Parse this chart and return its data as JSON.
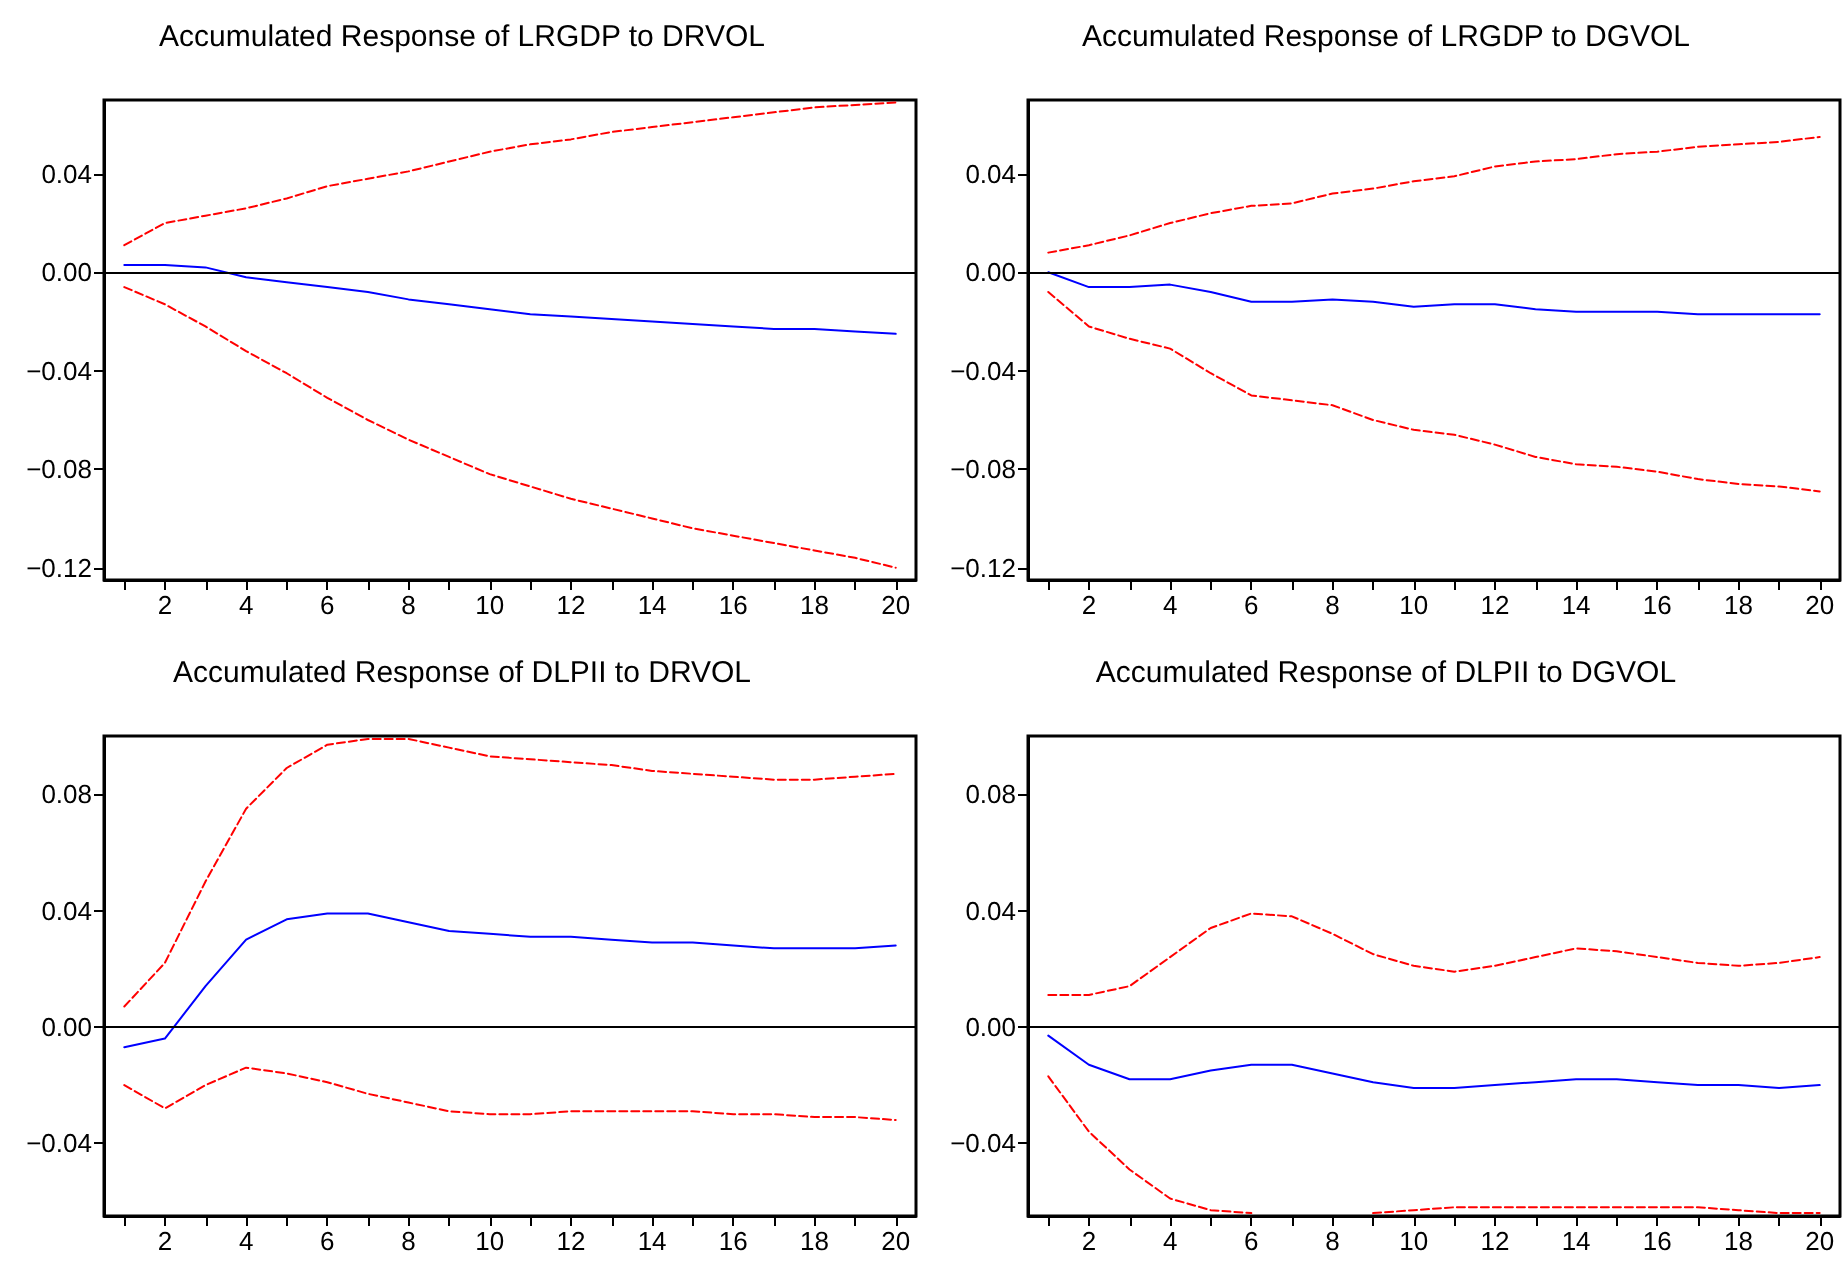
{
  "chart_data": [
    {
      "type": "line",
      "title": "Accumulated Response of LRGDP to DRVOL",
      "x": [
        1,
        2,
        3,
        4,
        5,
        6,
        7,
        8,
        9,
        10,
        11,
        12,
        13,
        14,
        15,
        16,
        17,
        18,
        19,
        20
      ],
      "xlim": [
        0.5,
        20.5
      ],
      "xticks": [
        {
          "value": 1,
          "label": null
        },
        2,
        {
          "value": 3,
          "label": null
        },
        4,
        {
          "value": 5,
          "label": null
        },
        6,
        {
          "value": 7,
          "label": null
        },
        8,
        {
          "value": 9,
          "label": null
        },
        10,
        {
          "value": 11,
          "label": null
        },
        12,
        {
          "value": 13,
          "label": null
        },
        14,
        {
          "value": 15,
          "label": null
        },
        16,
        {
          "value": 17,
          "label": null
        },
        18,
        {
          "value": 19,
          "label": null
        },
        20
      ],
      "ylim": [
        -0.125,
        0.07
      ],
      "yticks": [
        {
          "value": -0.12,
          "label": "−0.12"
        },
        {
          "value": -0.08,
          "label": "−0.08"
        },
        {
          "value": -0.04,
          "label": "−0.04"
        },
        {
          "value": 0,
          "label": "0.00"
        },
        {
          "value": 0.04,
          "label": "0.04"
        }
      ],
      "grid": false,
      "marker": "none",
      "ref_lines": [
        {
          "axis": "y",
          "value": 0,
          "color": "#000000"
        }
      ],
      "series": [
        {
          "color": "#0000ff",
          "line_style": "solid",
          "values": [
            0.003,
            0.003,
            0.002,
            -0.002,
            -0.004,
            -0.006,
            -0.008,
            -0.011,
            -0.013,
            -0.015,
            -0.017,
            -0.018,
            -0.019,
            -0.02,
            -0.021,
            -0.022,
            -0.023,
            -0.023,
            -0.024,
            -0.025
          ]
        },
        {
          "color": "#ff0000",
          "line_style": "dashed",
          "values": [
            0.011,
            0.02,
            0.023,
            0.026,
            0.03,
            0.035,
            0.038,
            0.041,
            0.045,
            0.049,
            0.052,
            0.054,
            0.057,
            0.059,
            0.061,
            0.063,
            0.065,
            0.067,
            0.068,
            0.069
          ]
        },
        {
          "color": "#ff0000",
          "line_style": "dashed",
          "values": [
            -0.006,
            -0.013,
            -0.022,
            -0.032,
            -0.041,
            -0.051,
            -0.06,
            -0.068,
            -0.075,
            -0.082,
            -0.087,
            -0.092,
            -0.096,
            -0.1,
            -0.104,
            -0.107,
            -0.11,
            -0.113,
            -0.116,
            -0.12
          ]
        }
      ]
    },
    {
      "type": "line",
      "title": "Accumulated Response of LRGDP to DGVOL",
      "x": [
        1,
        2,
        3,
        4,
        5,
        6,
        7,
        8,
        9,
        10,
        11,
        12,
        13,
        14,
        15,
        16,
        17,
        18,
        19,
        20
      ],
      "xlim": [
        0.5,
        20.5
      ],
      "xticks": [
        {
          "value": 1,
          "label": null
        },
        2,
        {
          "value": 3,
          "label": null
        },
        4,
        {
          "value": 5,
          "label": null
        },
        6,
        {
          "value": 7,
          "label": null
        },
        8,
        {
          "value": 9,
          "label": null
        },
        10,
        {
          "value": 11,
          "label": null
        },
        12,
        {
          "value": 13,
          "label": null
        },
        14,
        {
          "value": 15,
          "label": null
        },
        16,
        {
          "value": 17,
          "label": null
        },
        18,
        {
          "value": 19,
          "label": null
        },
        20
      ],
      "ylim": [
        -0.125,
        0.07
      ],
      "yticks": [
        {
          "value": -0.12,
          "label": "−0.12"
        },
        {
          "value": -0.08,
          "label": "−0.08"
        },
        {
          "value": -0.04,
          "label": "−0.04"
        },
        {
          "value": 0,
          "label": "0.00"
        },
        {
          "value": 0.04,
          "label": "0.04"
        }
      ],
      "grid": false,
      "marker": "none",
      "ref_lines": [
        {
          "axis": "y",
          "value": 0,
          "color": "#000000"
        }
      ],
      "series": [
        {
          "color": "#0000ff",
          "line_style": "solid",
          "values": [
            0,
            -0.006,
            -0.006,
            -0.005,
            -0.008,
            -0.012,
            -0.012,
            -0.011,
            -0.012,
            -0.014,
            -0.013,
            -0.013,
            -0.015,
            -0.016,
            -0.016,
            -0.016,
            -0.017,
            -0.017,
            -0.017,
            -0.017
          ]
        },
        {
          "color": "#ff0000",
          "line_style": "dashed",
          "values": [
            0.008,
            0.011,
            0.015,
            0.02,
            0.024,
            0.027,
            0.028,
            0.032,
            0.034,
            0.037,
            0.039,
            0.043,
            0.045,
            0.046,
            0.048,
            0.049,
            0.051,
            0.052,
            0.053,
            0.055
          ]
        },
        {
          "color": "#ff0000",
          "line_style": "dashed",
          "values": [
            -0.008,
            -0.022,
            -0.027,
            -0.031,
            -0.041,
            -0.05,
            -0.052,
            -0.054,
            -0.06,
            -0.064,
            -0.066,
            -0.07,
            -0.075,
            -0.078,
            -0.079,
            -0.081,
            -0.084,
            -0.086,
            -0.087,
            -0.089
          ]
        }
      ]
    },
    {
      "type": "line",
      "title": "Accumulated Response of DLPII to DRVOL",
      "x": [
        1,
        2,
        3,
        4,
        5,
        6,
        7,
        8,
        9,
        10,
        11,
        12,
        13,
        14,
        15,
        16,
        17,
        18,
        19,
        20
      ],
      "xlim": [
        0.5,
        20.5
      ],
      "xticks": [
        {
          "value": 1,
          "label": null
        },
        2,
        {
          "value": 3,
          "label": null
        },
        4,
        {
          "value": 5,
          "label": null
        },
        6,
        {
          "value": 7,
          "label": null
        },
        8,
        {
          "value": 9,
          "label": null
        },
        10,
        {
          "value": 11,
          "label": null
        },
        12,
        {
          "value": 13,
          "label": null
        },
        14,
        {
          "value": 15,
          "label": null
        },
        16,
        {
          "value": 17,
          "label": null
        },
        18,
        {
          "value": 19,
          "label": null
        },
        20
      ],
      "ylim": [
        -0.065,
        0.1
      ],
      "yticks": [
        {
          "value": -0.04,
          "label": "−0.04"
        },
        {
          "value": 0,
          "label": "0.00"
        },
        {
          "value": 0.04,
          "label": "0.04"
        },
        {
          "value": 0.08,
          "label": "0.08"
        }
      ],
      "grid": false,
      "marker": "none",
      "ref_lines": [
        {
          "axis": "y",
          "value": 0,
          "color": "#000000"
        }
      ],
      "series": [
        {
          "color": "#0000ff",
          "line_style": "solid",
          "values": [
            -0.007,
            -0.004,
            0.014,
            0.03,
            0.037,
            0.039,
            0.039,
            0.036,
            0.033,
            0.032,
            0.031,
            0.031,
            0.03,
            0.029,
            0.029,
            0.028,
            0.027,
            0.027,
            0.027,
            0.028
          ]
        },
        {
          "color": "#ff0000",
          "line_style": "dashed",
          "values": [
            0.007,
            0.022,
            0.05,
            0.075,
            0.089,
            0.097,
            0.099,
            0.099,
            0.096,
            0.093,
            0.092,
            0.091,
            0.09,
            0.088,
            0.087,
            0.086,
            0.085,
            0.085,
            0.086,
            0.087
          ]
        },
        {
          "color": "#ff0000",
          "line_style": "dashed",
          "values": [
            -0.02,
            -0.028,
            -0.02,
            -0.014,
            -0.016,
            -0.019,
            -0.023,
            -0.026,
            -0.029,
            -0.03,
            -0.03,
            -0.029,
            -0.029,
            -0.029,
            -0.029,
            -0.03,
            -0.03,
            -0.031,
            -0.031,
            -0.032
          ]
        }
      ]
    },
    {
      "type": "line",
      "title": "Accumulated Response of DLPII to DGVOL",
      "x": [
        1,
        2,
        3,
        4,
        5,
        6,
        7,
        8,
        9,
        10,
        11,
        12,
        13,
        14,
        15,
        16,
        17,
        18,
        19,
        20
      ],
      "xlim": [
        0.5,
        20.5
      ],
      "xticks": [
        {
          "value": 1,
          "label": null
        },
        2,
        {
          "value": 3,
          "label": null
        },
        4,
        {
          "value": 5,
          "label": null
        },
        6,
        {
          "value": 7,
          "label": null
        },
        8,
        {
          "value": 9,
          "label": null
        },
        10,
        {
          "value": 11,
          "label": null
        },
        12,
        {
          "value": 13,
          "label": null
        },
        14,
        {
          "value": 15,
          "label": null
        },
        16,
        {
          "value": 17,
          "label": null
        },
        18,
        {
          "value": 19,
          "label": null
        },
        20
      ],
      "ylim": [
        -0.065,
        0.1
      ],
      "yticks": [
        {
          "value": -0.04,
          "label": "−0.04"
        },
        {
          "value": 0,
          "label": "0.00"
        },
        {
          "value": 0.04,
          "label": "0.04"
        },
        {
          "value": 0.08,
          "label": "0.08"
        }
      ],
      "grid": false,
      "marker": "none",
      "ref_lines": [
        {
          "axis": "y",
          "value": 0,
          "color": "#000000"
        }
      ],
      "series": [
        {
          "color": "#0000ff",
          "line_style": "solid",
          "values": [
            -0.003,
            -0.013,
            -0.018,
            -0.018,
            -0.015,
            -0.013,
            -0.013,
            -0.016,
            -0.019,
            -0.021,
            -0.021,
            -0.02,
            -0.019,
            -0.018,
            -0.018,
            -0.019,
            -0.02,
            -0.02,
            -0.021,
            -0.02
          ]
        },
        {
          "color": "#ff0000",
          "line_style": "dashed",
          "values": [
            0.011,
            0.011,
            0.014,
            0.024,
            0.034,
            0.039,
            0.038,
            0.032,
            0.025,
            0.021,
            0.019,
            0.021,
            0.024,
            0.027,
            0.026,
            0.024,
            0.022,
            0.021,
            0.022,
            0.024
          ]
        },
        {
          "color": "#ff0000",
          "line_style": "dashed",
          "values": [
            -0.017,
            -0.036,
            -0.049,
            -0.059,
            -0.063,
            -0.064,
            null,
            null,
            -0.064,
            -0.063,
            -0.062,
            -0.062,
            -0.062,
            -0.062,
            -0.062,
            -0.062,
            -0.062,
            -0.063,
            -0.064,
            -0.064
          ]
        }
      ]
    }
  ]
}
